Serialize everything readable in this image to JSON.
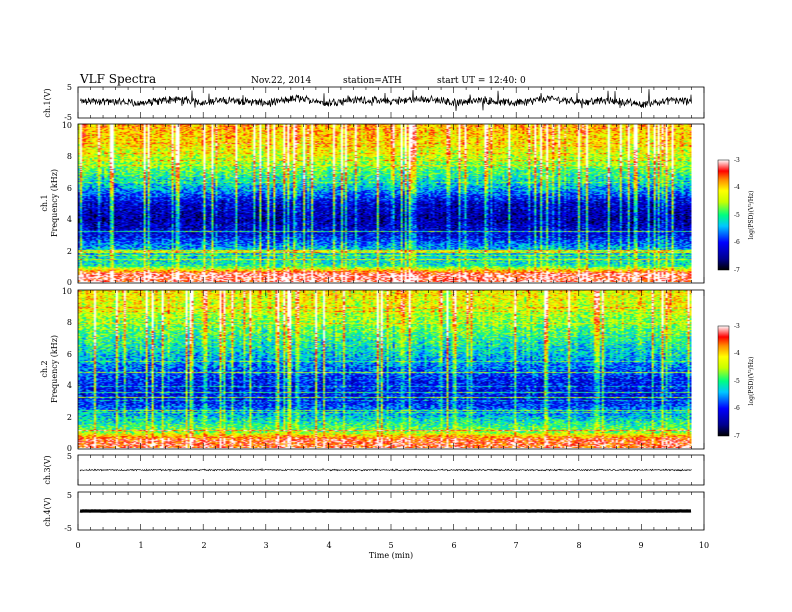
{
  "header": {
    "title": "VLF  Spectra",
    "date": "Nov.22, 2014",
    "station": "station=ATH",
    "start": "start  UT  =    12:40: 0"
  },
  "chart_data": [
    {
      "type": "line",
      "panel": "ch1-waveform",
      "ylabel": "ch.1(V)",
      "ylim": [
        -5,
        5
      ],
      "yticks": [
        "5",
        "-5"
      ],
      "x": [
        0,
        0.5,
        1,
        1.5,
        2,
        2.5,
        3,
        3.5,
        4,
        4.5,
        5,
        5.5,
        6,
        6.5,
        7,
        7.5,
        8,
        8.5,
        9,
        9.5,
        9.8
      ],
      "y": [
        0.3,
        0.5,
        -0.4,
        1.2,
        0.2,
        0.8,
        -0.3,
        1.5,
        0.0,
        0.9,
        0.4,
        1.3,
        0.1,
        0.7,
        -0.2,
        1.4,
        0.3,
        0.6,
        -0.5,
        0.9,
        0.2
      ]
    },
    {
      "type": "heatmap",
      "panel": "ch1-spectrogram",
      "ylabel_channel": "ch.1",
      "ylabel": "Frequency  (kHz)",
      "ylim": [
        0,
        10
      ],
      "yticks": [
        "0",
        "2",
        "4",
        "6",
        "8",
        "10"
      ],
      "colorbar": {
        "label": "log(PSD)(V²/Hz)",
        "range": [
          -7,
          -3
        ],
        "ticks": [
          "-3",
          "-4",
          "-5",
          "-6",
          "-7"
        ]
      },
      "approx_logpsd_profile": [
        {
          "freq_khz": 0.5,
          "logpsd": -3.3
        },
        {
          "freq_khz": 1,
          "logpsd": -5.2
        },
        {
          "freq_khz": 2,
          "logpsd": -5.5
        },
        {
          "freq_khz": 3,
          "logpsd": -6.3
        },
        {
          "freq_khz": 4,
          "logpsd": -6.6
        },
        {
          "freq_khz": 5,
          "logpsd": -6.4
        },
        {
          "freq_khz": 6,
          "logpsd": -5.6
        },
        {
          "freq_khz": 7,
          "logpsd": -5.1
        },
        {
          "freq_khz": 8,
          "logpsd": -4.6
        },
        {
          "freq_khz": 9,
          "logpsd": -4.3
        },
        {
          "freq_khz": 10,
          "logpsd": -4.1
        }
      ]
    },
    {
      "type": "heatmap",
      "panel": "ch2-spectrogram",
      "ylabel_channel": "ch.2",
      "ylabel": "Frequency  (kHz)",
      "ylim": [
        0,
        10
      ],
      "yticks": [
        "0",
        "2",
        "4",
        "6",
        "8",
        "10"
      ],
      "colorbar": {
        "label": "log(PSD)(V²/Hz)",
        "range": [
          -7,
          -3
        ],
        "ticks": [
          "-3",
          "-4",
          "-5",
          "-6",
          "-7"
        ]
      },
      "approx_logpsd_profile": [
        {
          "freq_khz": 0.5,
          "logpsd": -3.5
        },
        {
          "freq_khz": 1,
          "logpsd": -4.8
        },
        {
          "freq_khz": 2,
          "logpsd": -5.5
        },
        {
          "freq_khz": 3,
          "logpsd": -6.2
        },
        {
          "freq_khz": 4,
          "logpsd": -6.2
        },
        {
          "freq_khz": 5,
          "logpsd": -5.9
        },
        {
          "freq_khz": 6,
          "logpsd": -5.5
        },
        {
          "freq_khz": 7,
          "logpsd": -5.2
        },
        {
          "freq_khz": 8,
          "logpsd": -4.9
        },
        {
          "freq_khz": 9,
          "logpsd": -4.6
        },
        {
          "freq_khz": 10,
          "logpsd": -4.4
        }
      ]
    },
    {
      "type": "line",
      "panel": "ch3-waveform",
      "ylabel": "ch.3(V)",
      "ylim": [
        -5,
        5
      ],
      "yticks": [
        "5"
      ],
      "x": [
        0,
        9.8
      ],
      "y": [
        0,
        0
      ]
    },
    {
      "type": "line",
      "panel": "ch4-waveform",
      "ylabel": "ch.4(V)",
      "ylim": [
        -5,
        5
      ],
      "yticks": [
        "5",
        "-5"
      ],
      "x": [
        0,
        9.8
      ],
      "y": [
        0,
        0
      ]
    }
  ],
  "x_axis": {
    "label": "Time  (min)",
    "xlim": [
      0,
      10
    ],
    "ticks": [
      "0",
      "1",
      "2",
      "3",
      "4",
      "5",
      "6",
      "7",
      "8",
      "9",
      "10"
    ]
  }
}
